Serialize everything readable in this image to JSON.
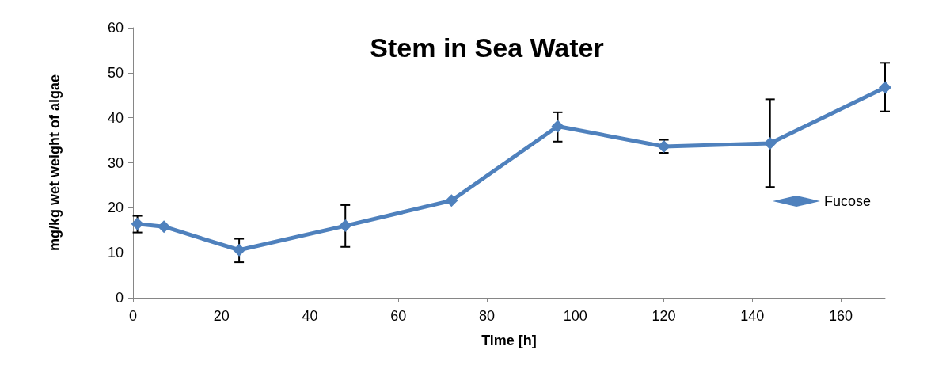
{
  "chart_data": {
    "type": "line",
    "title": "Stem in Sea Water",
    "xlabel": "Time [h]",
    "ylabel": "mg/kg wet weight of algae",
    "x": [
      1,
      7,
      24,
      48,
      72,
      96,
      120,
      144,
      170
    ],
    "series": [
      {
        "name": "Fucose",
        "color": "#4f81bd",
        "values": [
          16.4,
          15.8,
          10.6,
          16.0,
          21.6,
          38.1,
          33.6,
          34.3,
          46.7
        ],
        "errors": [
          [
            14.5,
            18.2
          ],
          null,
          [
            7.9,
            13.1
          ],
          [
            11.3,
            20.6
          ],
          null,
          [
            34.7,
            41.2
          ],
          [
            32.2,
            35.1
          ],
          [
            24.6,
            44.1
          ],
          [
            41.4,
            52.2
          ]
        ]
      }
    ],
    "xlim": [
      0,
      170
    ],
    "xticks": [
      0,
      20,
      40,
      60,
      80,
      100,
      120,
      140,
      160
    ],
    "ylim": [
      0,
      60
    ],
    "yticks": [
      0,
      10,
      20,
      30,
      40,
      50,
      60
    ],
    "grid": false,
    "legend": "right",
    "marker": "diamond",
    "line_style": "solid"
  }
}
